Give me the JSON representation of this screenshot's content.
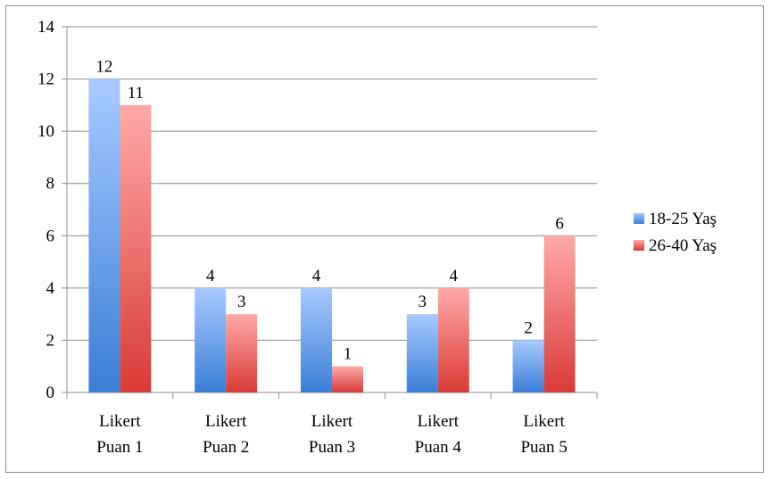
{
  "chart_data": {
    "type": "bar",
    "categories": [
      [
        "Likert",
        "Puan 1"
      ],
      [
        "Likert",
        "Puan 2"
      ],
      [
        "Likert",
        "Puan 3"
      ],
      [
        "Likert",
        "Puan 4"
      ],
      [
        "Likert",
        "Puan 5"
      ]
    ],
    "series": [
      {
        "name": "18-25 Yaş",
        "values": [
          12,
          4,
          4,
          3,
          2
        ],
        "color_top": "#a8caff",
        "color_bottom": "#3a7fd6"
      },
      {
        "name": "26-40 Yaş",
        "values": [
          11,
          3,
          1,
          4,
          6
        ],
        "color_top": "#ffaaa8",
        "color_bottom": "#d93a36"
      }
    ],
    "title": "",
    "xlabel": "",
    "ylabel": "",
    "ylim": [
      0,
      14
    ],
    "yticks": [
      0,
      2,
      4,
      6,
      8,
      10,
      12,
      14
    ],
    "grid": true,
    "legend_position": "right",
    "data_labels": true
  }
}
